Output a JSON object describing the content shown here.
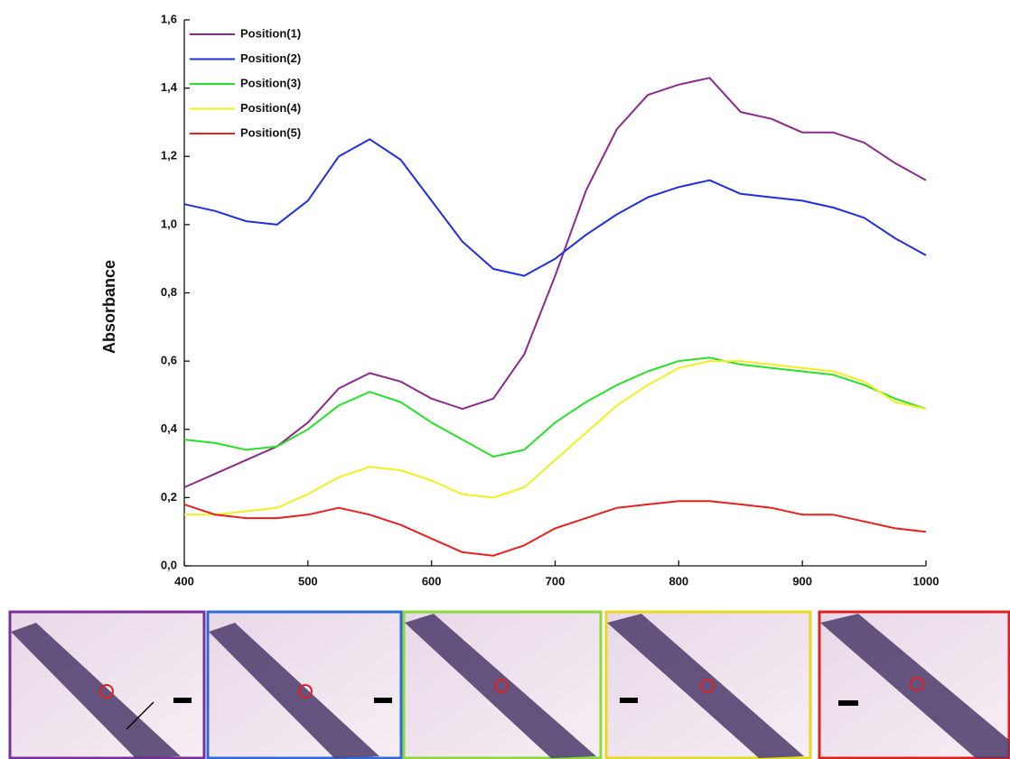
{
  "chart_data": {
    "type": "line",
    "y_label": "Absorbance",
    "x": [
      400,
      425,
      450,
      475,
      500,
      525,
      550,
      575,
      600,
      625,
      650,
      675,
      700,
      725,
      750,
      775,
      800,
      825,
      850,
      875,
      900,
      925,
      950,
      975,
      1000
    ],
    "series": [
      {
        "name": "Position(1)",
        "color": "#8b2a8b",
        "values": [
          0.23,
          0.27,
          0.31,
          0.35,
          0.42,
          0.52,
          0.565,
          0.54,
          0.49,
          0.46,
          0.49,
          0.62,
          0.85,
          1.1,
          1.28,
          1.38,
          1.41,
          1.43,
          1.33,
          1.31,
          1.27,
          1.27,
          1.24,
          1.18,
          1.13
        ]
      },
      {
        "name": "Position(2)",
        "color": "#1f2fe0",
        "values": [
          1.06,
          1.04,
          1.01,
          1.0,
          1.07,
          1.2,
          1.25,
          1.19,
          1.07,
          0.95,
          0.87,
          0.85,
          0.9,
          0.97,
          1.03,
          1.08,
          1.11,
          1.13,
          1.09,
          1.08,
          1.07,
          1.05,
          1.02,
          0.96,
          0.91
        ]
      },
      {
        "name": "Position(3)",
        "color": "#2adf2a",
        "values": [
          0.37,
          0.36,
          0.34,
          0.35,
          0.4,
          0.47,
          0.51,
          0.48,
          0.42,
          0.37,
          0.32,
          0.34,
          0.42,
          0.48,
          0.53,
          0.57,
          0.6,
          0.61,
          0.59,
          0.58,
          0.57,
          0.56,
          0.53,
          0.49,
          0.46
        ]
      },
      {
        "name": "Position(4)",
        "color": "#f0f020",
        "values": [
          0.15,
          0.15,
          0.16,
          0.17,
          0.21,
          0.26,
          0.29,
          0.28,
          0.25,
          0.21,
          0.2,
          0.23,
          0.31,
          0.39,
          0.47,
          0.53,
          0.58,
          0.6,
          0.6,
          0.59,
          0.58,
          0.57,
          0.54,
          0.48,
          0.46
        ]
      },
      {
        "name": "Position(5)",
        "color": "#e8201e",
        "values": [
          0.18,
          0.15,
          0.14,
          0.14,
          0.15,
          0.17,
          0.15,
          0.12,
          0.08,
          0.04,
          0.03,
          0.06,
          0.11,
          0.14,
          0.17,
          0.18,
          0.19,
          0.19,
          0.18,
          0.17,
          0.15,
          0.15,
          0.13,
          0.11,
          0.1
        ]
      }
    ],
    "xlim": [
      400,
      1000
    ],
    "xticks": [
      400,
      500,
      600,
      700,
      800,
      900,
      1000
    ],
    "ylim": [
      0,
      1.6
    ],
    "yticks": [
      {
        "value": 0,
        "label": "0,0"
      },
      {
        "value": 0.2,
        "label": "0,2"
      },
      {
        "value": 0.4,
        "label": "0,4"
      },
      {
        "value": 0.6,
        "label": "0,6"
      },
      {
        "value": 0.8,
        "label": "0,8"
      },
      {
        "value": 1.0,
        "label": "1,0"
      },
      {
        "value": 1.2,
        "label": "1,2"
      },
      {
        "value": 1.4,
        "label": "1,4"
      },
      {
        "value": 1.6,
        "label": "1,6"
      }
    ],
    "legend": "top-left"
  }
}
